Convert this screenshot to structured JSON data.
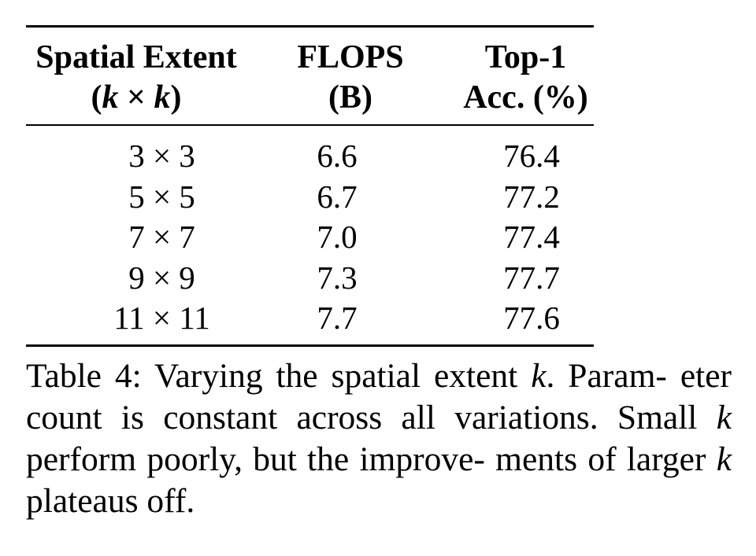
{
  "table": {
    "headers": {
      "col1": {
        "line1": "Spatial Extent",
        "line2_open": "(",
        "line2_k1": "k",
        "line2_times": " × ",
        "line2_k2": "k",
        "line2_close": ")"
      },
      "col2": {
        "line1": "FLOPS",
        "line2": "(B)"
      },
      "col3": {
        "line1": "Top-1",
        "line2": "Acc. (%)"
      }
    },
    "rows": [
      {
        "extent": "3 × 3",
        "flops": "6.6",
        "acc": "76.4"
      },
      {
        "extent": "5 × 5",
        "flops": "6.7",
        "acc": "77.2"
      },
      {
        "extent": "7 × 7",
        "flops": "7.0",
        "acc": "77.4"
      },
      {
        "extent": "9 × 9",
        "flops": "7.3",
        "acc": "77.7"
      },
      {
        "extent": "11 × 11",
        "flops": "7.7",
        "acc": "77.6"
      }
    ]
  },
  "caption": {
    "part1": "Table 4: Varying the spatial extent ",
    "k1": "k",
    "part2": ". Param-",
    "part3": "eter count is constant across all variations.",
    "part4": "Small ",
    "k2": "k",
    "part5": " perform poorly, but the improve-",
    "part6": "ments of larger ",
    "k3": "k",
    "part7": " plateaus off."
  }
}
